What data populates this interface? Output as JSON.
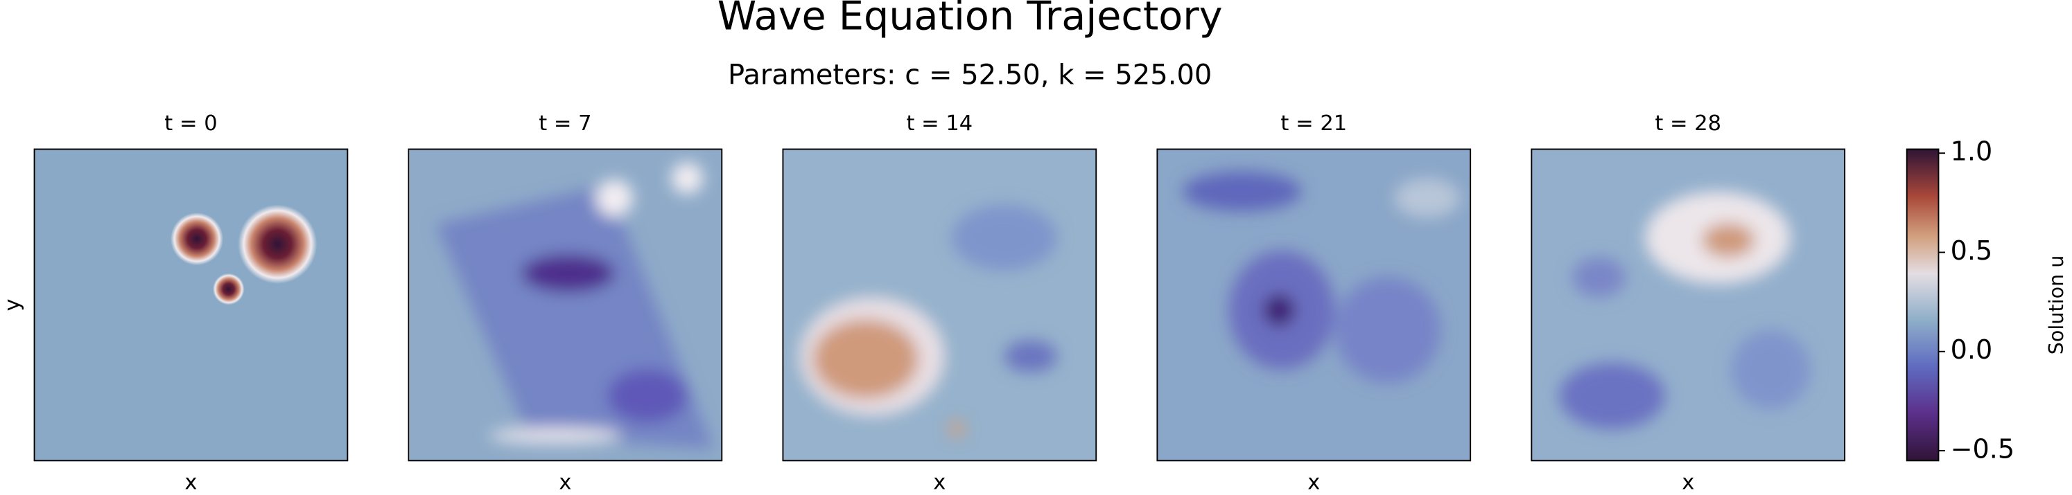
{
  "chart_data": {
    "type": "heatmap",
    "title": "Wave Equation Trajectory",
    "subtitle": "Parameters: c = 52.50, k = 525.00",
    "panels": [
      {
        "title": "t = 0",
        "xlabel": "x",
        "ylabel": "y"
      },
      {
        "title": "t = 7",
        "xlabel": "x"
      },
      {
        "title": "t = 14",
        "xlabel": "x"
      },
      {
        "title": "t = 21",
        "xlabel": "x"
      },
      {
        "title": "t = 28",
        "xlabel": "x"
      }
    ],
    "colorbar": {
      "label": "Solution u",
      "colormap": "twilight_shifted",
      "ylim": [
        -0.55,
        1.02
      ],
      "yticks": [
        {
          "value": -0.5,
          "label": "−0.5"
        },
        {
          "value": 0.0,
          "label": "0.0"
        },
        {
          "value": 0.5,
          "label": "0.5"
        },
        {
          "value": 1.0,
          "label": "1.0"
        }
      ]
    }
  }
}
